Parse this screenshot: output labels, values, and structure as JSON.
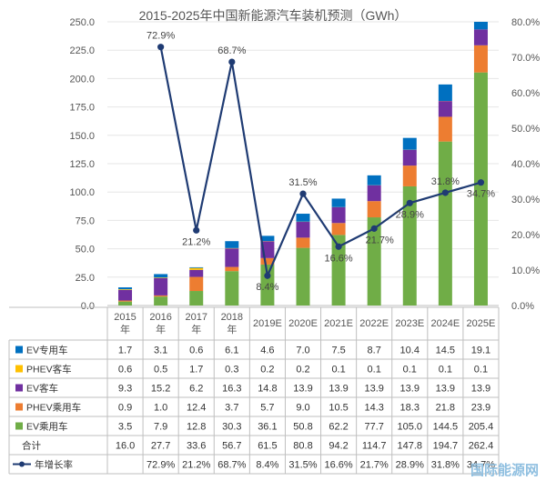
{
  "chart_data": {
    "type": "bar",
    "title": "2015-2025年中国新能源汽车装机预测（GWh）",
    "categories": [
      [
        "2015",
        "年"
      ],
      [
        "2016",
        "年"
      ],
      [
        "2017",
        "年"
      ],
      [
        "2018",
        "年"
      ],
      [
        "2019E"
      ],
      [
        "2020E"
      ],
      [
        "2021E"
      ],
      [
        "2022E"
      ],
      [
        "2023E"
      ],
      [
        "2024E"
      ],
      [
        "2025E"
      ]
    ],
    "ylim": [
      0,
      250
    ],
    "yticks": [
      "0.0",
      "25.0",
      "50.0",
      "75.0",
      "100.0",
      "125.0",
      "150.0",
      "175.0",
      "200.0",
      "225.0",
      "250.0"
    ],
    "y2lim": [
      0,
      80
    ],
    "y2ticks": [
      "0.0%",
      "10.0%",
      "20.0%",
      "30.0%",
      "40.0%",
      "50.0%",
      "60.0%",
      "70.0%",
      "80.0%"
    ],
    "series": [
      {
        "name": "EV乘用车",
        "color": "#70ad47",
        "values": [
          3.5,
          7.9,
          12.8,
          30.3,
          36.1,
          50.8,
          62.2,
          77.7,
          105.0,
          144.5,
          205.4
        ],
        "labels": [
          "3.5",
          "7.9",
          "12.8",
          "30.3",
          "36.1",
          "50.8",
          "62.2",
          "77.7",
          "105.0",
          "144.5",
          "205.4"
        ]
      },
      {
        "name": "PHEV乘用车",
        "color": "#ed7d31",
        "values": [
          0.9,
          1.0,
          12.4,
          3.7,
          5.7,
          9.0,
          10.5,
          14.3,
          18.3,
          21.8,
          23.9
        ],
        "labels": [
          "0.9",
          "1.0",
          "12.4",
          "3.7",
          "5.7",
          "9.0",
          "10.5",
          "14.3",
          "18.3",
          "21.8",
          "23.9"
        ]
      },
      {
        "name": "EV客车",
        "color": "#7030a0",
        "values": [
          9.3,
          15.2,
          6.2,
          16.3,
          14.8,
          13.9,
          13.9,
          13.9,
          13.9,
          13.9,
          13.9
        ],
        "labels": [
          "9.3",
          "15.2",
          "6.2",
          "16.3",
          "14.8",
          "13.9",
          "13.9",
          "13.9",
          "13.9",
          "13.9",
          "13.9"
        ]
      },
      {
        "name": "PHEV客车",
        "color": "#ffc000",
        "values": [
          0.6,
          0.5,
          1.7,
          0.3,
          0.2,
          0.2,
          0.1,
          0.1,
          0.1,
          0.1,
          0.1
        ],
        "labels": [
          "0.6",
          "0.5",
          "1.7",
          "0.3",
          "0.2",
          "0.2",
          "0.1",
          "0.1",
          "0.1",
          "0.1",
          "0.1"
        ]
      },
      {
        "name": "EV专用车",
        "color": "#0070c0",
        "values": [
          1.7,
          3.1,
          0.6,
          6.1,
          4.6,
          7.0,
          7.5,
          8.7,
          10.4,
          14.5,
          19.1
        ],
        "labels": [
          "1.7",
          "3.1",
          "0.6",
          "6.1",
          "4.6",
          "7.0",
          "7.5",
          "8.7",
          "10.4",
          "14.5",
          "19.1"
        ]
      }
    ],
    "totals": {
      "name": "合计",
      "labels": [
        "16.0",
        "27.7",
        "33.6",
        "56.7",
        "61.5",
        "80.8",
        "94.2",
        "114.7",
        "147.8",
        "194.7",
        "262.4"
      ]
    },
    "growth": {
      "name": "年增长率",
      "color": "#1f3b73",
      "values": [
        null,
        72.9,
        21.2,
        68.7,
        8.4,
        31.5,
        16.6,
        21.7,
        28.9,
        31.8,
        34.7
      ],
      "labels": [
        "",
        "72.9%",
        "21.2%",
        "68.7%",
        "8.4%",
        "31.5%",
        "16.6%",
        "21.7%",
        "28.9%",
        "31.8%",
        "34.7%"
      ]
    },
    "table_row_order": [
      "EV专用车",
      "PHEV客车",
      "EV客车",
      "PHEV乘用车",
      "EV乘用车"
    ]
  },
  "watermark": "国际能源网"
}
